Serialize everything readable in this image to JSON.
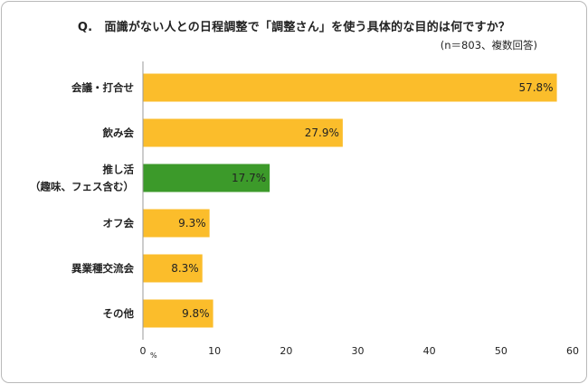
{
  "title": "Q.　面識がない人との日程調整で「調整さん」を使う具体的な目的は何ですか？",
  "subtitle": "(n＝803、複数回答)",
  "chart_data": {
    "type": "bar",
    "orientation": "horizontal",
    "categories": [
      [
        "会議・打合せ"
      ],
      [
        "飲み会"
      ],
      [
        "推し活",
        "（趣味、フェス含む）"
      ],
      [
        "オフ会"
      ],
      [
        "異業種交流会"
      ],
      [
        "その他"
      ]
    ],
    "values": [
      57.8,
      27.9,
      17.7,
      9.3,
      8.3,
      9.8
    ],
    "value_labels": [
      "57.8%",
      "27.9%",
      "17.7%",
      "9.3%",
      "8.3%",
      "9.8%"
    ],
    "colors": [
      "#fbbd2b",
      "#fbbd2b",
      "#3c9a2a",
      "#fbbd2b",
      "#fbbd2b",
      "#fbbd2b"
    ],
    "xlim": [
      0,
      60
    ],
    "xticks": [
      0,
      10,
      20,
      30,
      40,
      50,
      60
    ],
    "x_unit": "%",
    "grid": false,
    "legend": "none"
  }
}
